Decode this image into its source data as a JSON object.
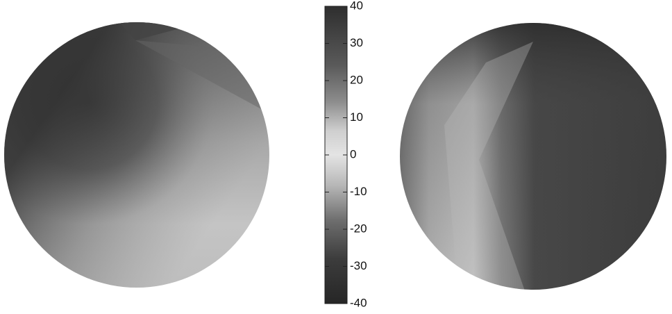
{
  "chart_data": {
    "type": "colorbar",
    "zlim": [
      -40,
      40
    ],
    "zticks": [
      -40,
      -30,
      -20,
      -10,
      0,
      10,
      20,
      30,
      40
    ]
  }
}
